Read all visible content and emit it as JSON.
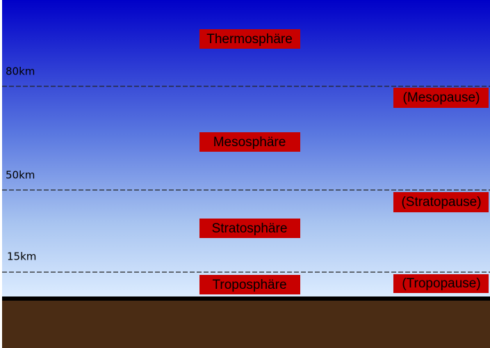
{
  "layers": [
    "Thermosphäre",
    "Mesosphäre",
    "Stratosphäre",
    "Troposphäre"
  ],
  "pauses": [
    "(Mesopause)",
    "(Stratopause)",
    "(Tropopause)"
  ],
  "altitudes": [
    "80km",
    "50km",
    "15km"
  ]
}
